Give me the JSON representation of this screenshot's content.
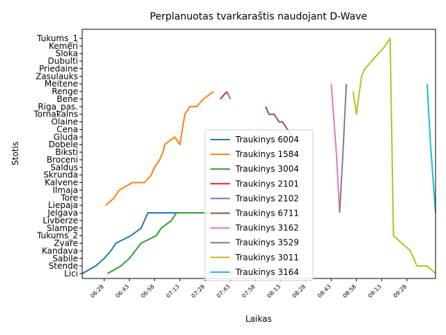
{
  "chart_data": {
    "type": "line",
    "title": "Perplanuotas tvarkaraštis naudojant D-Wave",
    "xlabel": "Laikas",
    "ylabel": "Stotis",
    "x_ticks": [
      "06:28",
      "06:43",
      "06:58",
      "07:13",
      "07:28",
      "07:43",
      "07:58",
      "08:13",
      "08:28",
      "08:43",
      "08:58",
      "09:13",
      "09:28"
    ],
    "x_range_minutes": [
      375,
      585
    ],
    "x_tick_start_minutes": 388,
    "x_tick_step_minutes": 15,
    "stations": [
      "Lici",
      "Stende",
      "Sabile",
      "Kandava",
      "Zvare",
      "Tukums_2",
      "Slampe",
      "Livberze",
      "Jelgava",
      "Liepaja",
      "Tore",
      "Ilmaja",
      "Kalvene",
      "Skrunda",
      "Saldus",
      "Broceni",
      "Biksti",
      "Dobele",
      "Gluda",
      "Cena",
      "Olaine",
      "Tornakalns",
      "Riga_pas.",
      "Bene",
      "Renge",
      "Meitene",
      "Zasulauks",
      "Priedaine",
      "Dubulti",
      "Sloka",
      "Kemeri",
      "Tukums_1"
    ],
    "legend_position": "center",
    "grid": false,
    "series": [
      {
        "name": "Traukinys 6004",
        "color": "#1f77b4",
        "x": [
          375,
          383,
          388,
          392,
          395,
          404,
          410,
          412,
          414,
          416,
          428,
          437,
          444,
          449
        ],
        "y": [
          0,
          1,
          2,
          3,
          4,
          5,
          6,
          7,
          8,
          8,
          8,
          8,
          8,
          8
        ]
      },
      {
        "name": "Traukinys 1584",
        "color": "#ff7f0e",
        "x": [
          389,
          394,
          397,
          405,
          412,
          416,
          418,
          421,
          423,
          424,
          430,
          433,
          436,
          439,
          443,
          447,
          453
        ],
        "y": [
          9,
          10,
          11,
          12,
          12,
          13,
          14,
          15,
          16,
          17,
          18,
          17,
          21,
          22,
          22,
          23,
          24
        ]
      },
      {
        "name": "Traukinys 3004",
        "color": "#2ca02c",
        "x": [
          390,
          398,
          403,
          410,
          419,
          422,
          428,
          431,
          436,
          440,
          448,
          451
        ],
        "y": [
          0,
          1,
          2,
          4,
          5,
          6,
          7,
          8,
          8,
          8,
          8,
          8
        ]
      },
      {
        "name": "Traukinys 2101",
        "color": "#d62728",
        "x": [
          457,
          461
        ],
        "y": [
          23,
          24
        ]
      },
      {
        "name": "Traukinys 2102",
        "color": "#9467bd",
        "x": [
          461,
          463
        ],
        "y": [
          24,
          23
        ]
      },
      {
        "name": "Traukinys 6711",
        "color": "#8c564b",
        "x": [
          484,
          486,
          489,
          492,
          494,
          497,
          500,
          502
        ],
        "y": [
          22,
          21,
          21,
          20,
          20,
          19,
          18,
          18
        ]
      },
      {
        "name": "Traukinys 3162",
        "color": "#e377c2",
        "x": [
          523,
          526,
          528
        ],
        "y": [
          25,
          16,
          8
        ]
      },
      {
        "name": "Traukinys 3529",
        "color": "#7f7f7f",
        "x": [
          528,
          530,
          532
        ],
        "y": [
          8,
          16,
          25
        ]
      },
      {
        "name": "Traukinys 3011",
        "color": "#bcbd22",
        "x": [
          536,
          538,
          541,
          543,
          547,
          551,
          555,
          558,
          560,
          565,
          570,
          574,
          575,
          576,
          580,
          585
        ],
        "y": [
          24,
          21,
          26,
          27,
          28,
          29,
          30,
          31,
          5,
          4,
          3,
          1,
          1,
          1,
          1,
          0
        ]
      },
      {
        "name": "Traukinys 3164",
        "color": "#17becf",
        "x": [
          580,
          582,
          585
        ],
        "y": [
          25,
          17,
          8
        ]
      }
    ]
  }
}
